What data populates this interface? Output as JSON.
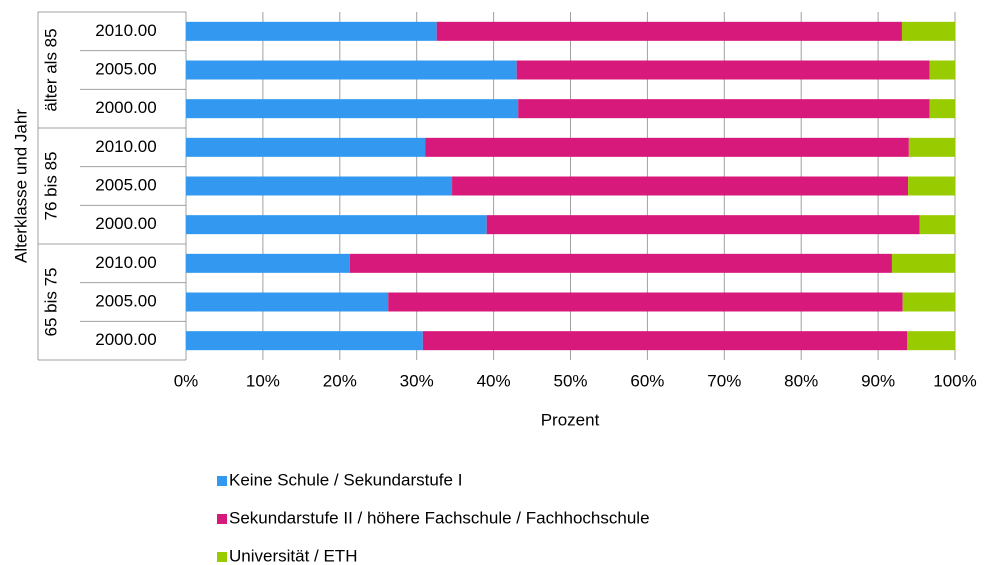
{
  "chart_data": {
    "type": "stacked_barh",
    "xlabel": "Prozent",
    "ylabel": "Alterklasse und Jahr",
    "category_groups": [
      {
        "label": "älter als 85",
        "categories": [
          "2010.00",
          "2005.00",
          "2000.00"
        ]
      },
      {
        "label": "76 bis 85",
        "categories": [
          "2010.00",
          "2005.00",
          "2000.00"
        ]
      },
      {
        "label": "65 bis 75",
        "categories": [
          "2010.00",
          "2005.00",
          "2000.00"
        ]
      }
    ],
    "series": [
      {
        "name": "Keine Schule / Sekundarstufe I",
        "color": "#3399f0",
        "values": [
          32.6,
          43.0,
          43.2,
          31.1,
          34.6,
          39.1,
          21.3,
          26.3,
          30.8
        ]
      },
      {
        "name": "Sekundarstufe II / höhere Fachschule / Fachhochschule",
        "color": "#d6197a",
        "values": [
          60.5,
          53.7,
          53.5,
          62.9,
          59.3,
          56.3,
          70.5,
          66.9,
          63.0
        ]
      },
      {
        "name": "Universität / ETH",
        "color": "#99cc00",
        "values": [
          6.9,
          3.3,
          3.3,
          6.0,
          6.1,
          4.6,
          8.2,
          6.8,
          6.2
        ]
      }
    ],
    "xlim": [
      0,
      100
    ],
    "xticks": [
      {
        "value": 0,
        "label": "0%"
      },
      {
        "value": 10,
        "label": "10%"
      },
      {
        "value": 20,
        "label": "20%"
      },
      {
        "value": 30,
        "label": "30%"
      },
      {
        "value": 40,
        "label": "40%"
      },
      {
        "value": 50,
        "label": "50%"
      },
      {
        "value": 60,
        "label": "60%"
      },
      {
        "value": 70,
        "label": "70%"
      },
      {
        "value": 80,
        "label": "80%"
      },
      {
        "value": 90,
        "label": "90%"
      },
      {
        "value": 100,
        "label": "100%"
      }
    ],
    "grid": true,
    "legend": "bottom"
  }
}
